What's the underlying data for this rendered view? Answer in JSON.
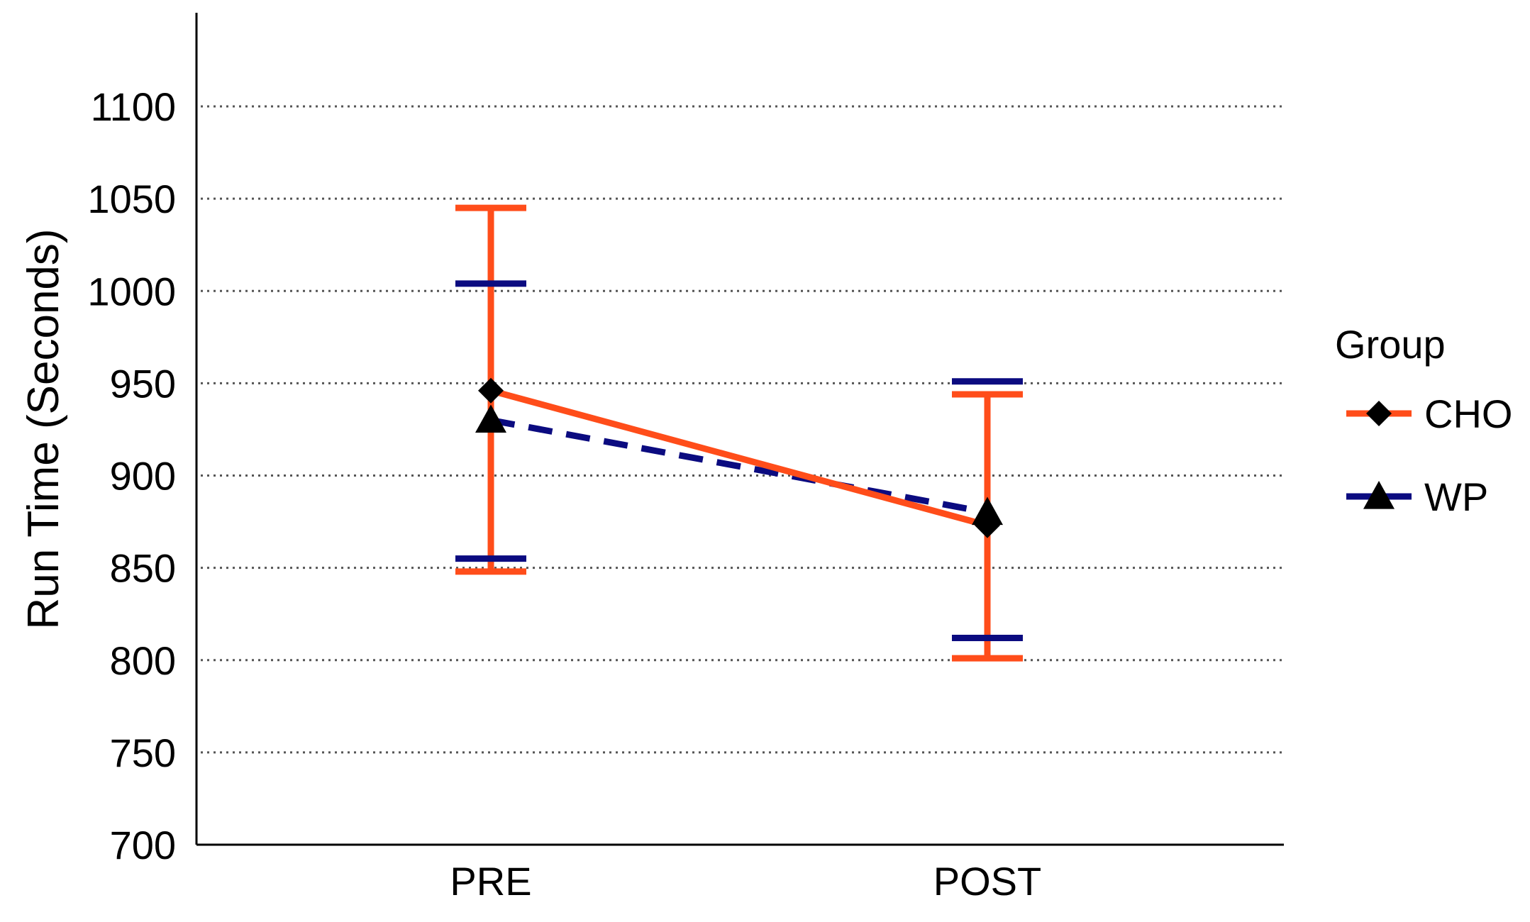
{
  "chart_data": {
    "type": "line",
    "title": "",
    "xlabel": "",
    "ylabel": "Run Time (Seconds)",
    "categories": [
      "PRE",
      "POST"
    ],
    "ylim": [
      700,
      1150
    ],
    "yticks": [
      "700",
      "750",
      "800",
      "850",
      "900",
      "950",
      "1000",
      "1050",
      "1100"
    ],
    "grid": "horizontal dotted",
    "legend": {
      "title": "Group",
      "placement": "right"
    },
    "series": [
      {
        "name": "CHO",
        "values": [
          946,
          873
        ],
        "error_low": [
          848,
          801
        ],
        "error_high": [
          1045,
          944
        ],
        "color": "#ff4d1a",
        "line_style": "solid",
        "marker": "diamond"
      },
      {
        "name": "WP",
        "values": [
          930,
          880
        ],
        "error_low": [
          855,
          812
        ],
        "error_high": [
          1004,
          951
        ],
        "color": "#0b0b80",
        "line_style": "dashed",
        "marker": "triangle"
      }
    ]
  }
}
